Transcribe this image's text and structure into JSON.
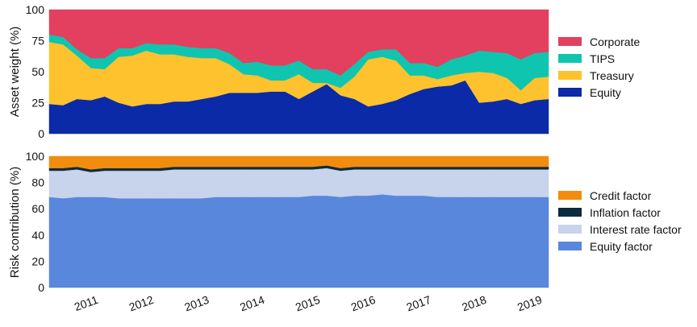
{
  "chart_data": [
    {
      "type": "area",
      "stacked": true,
      "ylabel": "Asset weight (%)",
      "ylim": [
        0,
        100
      ],
      "yticks": [
        0,
        25,
        50,
        75,
        100
      ],
      "x": [
        2010.75,
        2011.0,
        2011.25,
        2011.5,
        2011.75,
        2012.0,
        2012.25,
        2012.5,
        2012.75,
        2013.0,
        2013.25,
        2013.5,
        2013.75,
        2014.0,
        2014.25,
        2014.5,
        2014.75,
        2015.0,
        2015.25,
        2015.5,
        2015.75,
        2016.0,
        2016.25,
        2016.5,
        2016.75,
        2017.0,
        2017.25,
        2017.5,
        2017.75,
        2018.0,
        2018.25,
        2018.5,
        2018.75,
        2019.0,
        2019.25,
        2019.5,
        2019.75
      ],
      "series": [
        {
          "name": "Equity",
          "color": "#0a2aa8",
          "values": [
            24,
            23,
            28,
            27,
            30,
            25,
            22,
            24,
            24,
            26,
            26,
            28,
            30,
            33,
            33,
            33,
            34,
            34,
            28,
            34,
            40,
            31,
            28,
            22,
            24,
            27,
            32,
            36,
            38,
            39,
            43,
            25,
            26,
            28,
            24,
            27,
            28
          ]
        },
        {
          "name": "Treasury",
          "color": "#fdc22e",
          "values": [
            50,
            49,
            35,
            26,
            22,
            37,
            41,
            43,
            40,
            38,
            36,
            33,
            31,
            23,
            15,
            14,
            9,
            9,
            20,
            7,
            1,
            6,
            18,
            38,
            38,
            32,
            15,
            11,
            6,
            8,
            6,
            25,
            23,
            17,
            11,
            18,
            18
          ]
        },
        {
          "name": "TIPS",
          "color": "#0fc5b0",
          "values": [
            6,
            6,
            5,
            8,
            9,
            7,
            6,
            6,
            8,
            8,
            8,
            8,
            8,
            9,
            9,
            11,
            12,
            12,
            11,
            11,
            11,
            10,
            10,
            6,
            6,
            9,
            10,
            10,
            10,
            13,
            14,
            17,
            17,
            20,
            25,
            20,
            20
          ]
        },
        {
          "name": "Corporate",
          "color": "#e2405e",
          "values": [
            20,
            22,
            32,
            39,
            39,
            31,
            31,
            27,
            28,
            28,
            30,
            31,
            31,
            35,
            43,
            42,
            45,
            45,
            41,
            48,
            48,
            53,
            44,
            34,
            32,
            32,
            43,
            43,
            46,
            40,
            37,
            33,
            34,
            35,
            40,
            35,
            34
          ]
        }
      ],
      "legend": [
        "Corporate",
        "TIPS",
        "Treasury",
        "Equity"
      ],
      "legend_position": "right"
    },
    {
      "type": "area",
      "stacked": true,
      "ylabel": "Risk contribution (%)",
      "ylim": [
        0,
        100
      ],
      "yticks": [
        0,
        20,
        40,
        60,
        80,
        100
      ],
      "x": [
        2010.75,
        2011.0,
        2011.25,
        2011.5,
        2011.75,
        2012.0,
        2012.25,
        2012.5,
        2012.75,
        2013.0,
        2013.25,
        2013.5,
        2013.75,
        2014.0,
        2014.25,
        2014.5,
        2014.75,
        2015.0,
        2015.25,
        2015.5,
        2015.75,
        2016.0,
        2016.25,
        2016.5,
        2016.75,
        2017.0,
        2017.25,
        2017.5,
        2017.75,
        2018.0,
        2018.25,
        2018.5,
        2018.75,
        2019.0,
        2019.25,
        2019.5,
        2019.75
      ],
      "series": [
        {
          "name": "Equity factor",
          "color": "#5887dc",
          "values": [
            69,
            68,
            69,
            69,
            69,
            68,
            68,
            68,
            68,
            68,
            68,
            68,
            69,
            69,
            69,
            69,
            69,
            69,
            69,
            70,
            70,
            69,
            70,
            70,
            71,
            70,
            70,
            70,
            69,
            69,
            69,
            69,
            69,
            69,
            69,
            69,
            69
          ]
        },
        {
          "name": "Interest rate factor",
          "color": "#c8d3ec",
          "values": [
            20,
            21,
            21,
            19,
            20,
            21,
            21,
            21,
            21,
            22,
            22,
            22,
            21,
            21,
            21,
            21,
            21,
            21,
            21,
            20,
            21,
            20,
            20,
            20,
            19,
            20,
            20,
            20,
            21,
            21,
            21,
            21,
            21,
            21,
            21,
            21,
            21
          ]
        },
        {
          "name": "Inflation factor",
          "color": "#0c2b3c",
          "values": [
            2,
            2,
            2,
            2,
            2,
            2,
            2,
            2,
            2,
            2,
            2,
            2,
            2,
            2,
            2,
            2,
            2,
            2,
            2,
            2,
            2,
            2,
            2,
            2,
            2,
            2,
            2,
            2,
            2,
            2,
            2,
            2,
            2,
            2,
            2,
            2,
            2
          ]
        },
        {
          "name": "Credit factor",
          "color": "#f28c0f",
          "values": [
            9,
            9,
            8,
            10,
            9,
            9,
            9,
            9,
            9,
            8,
            8,
            8,
            8,
            8,
            8,
            8,
            8,
            8,
            8,
            8,
            7,
            9,
            8,
            8,
            8,
            8,
            8,
            8,
            8,
            8,
            8,
            8,
            8,
            8,
            8,
            8,
            8
          ]
        }
      ],
      "legend": [
        "Credit factor",
        "Inflation factor",
        "Interest rate factor",
        "Equity factor"
      ],
      "legend_position": "right"
    }
  ],
  "x_axis": {
    "xlim": [
      2010.75,
      2019.75
    ],
    "tick_labels": [
      "2011",
      "2012",
      "2013",
      "2014",
      "2015",
      "2016",
      "2017",
      "2018",
      "2019"
    ]
  }
}
